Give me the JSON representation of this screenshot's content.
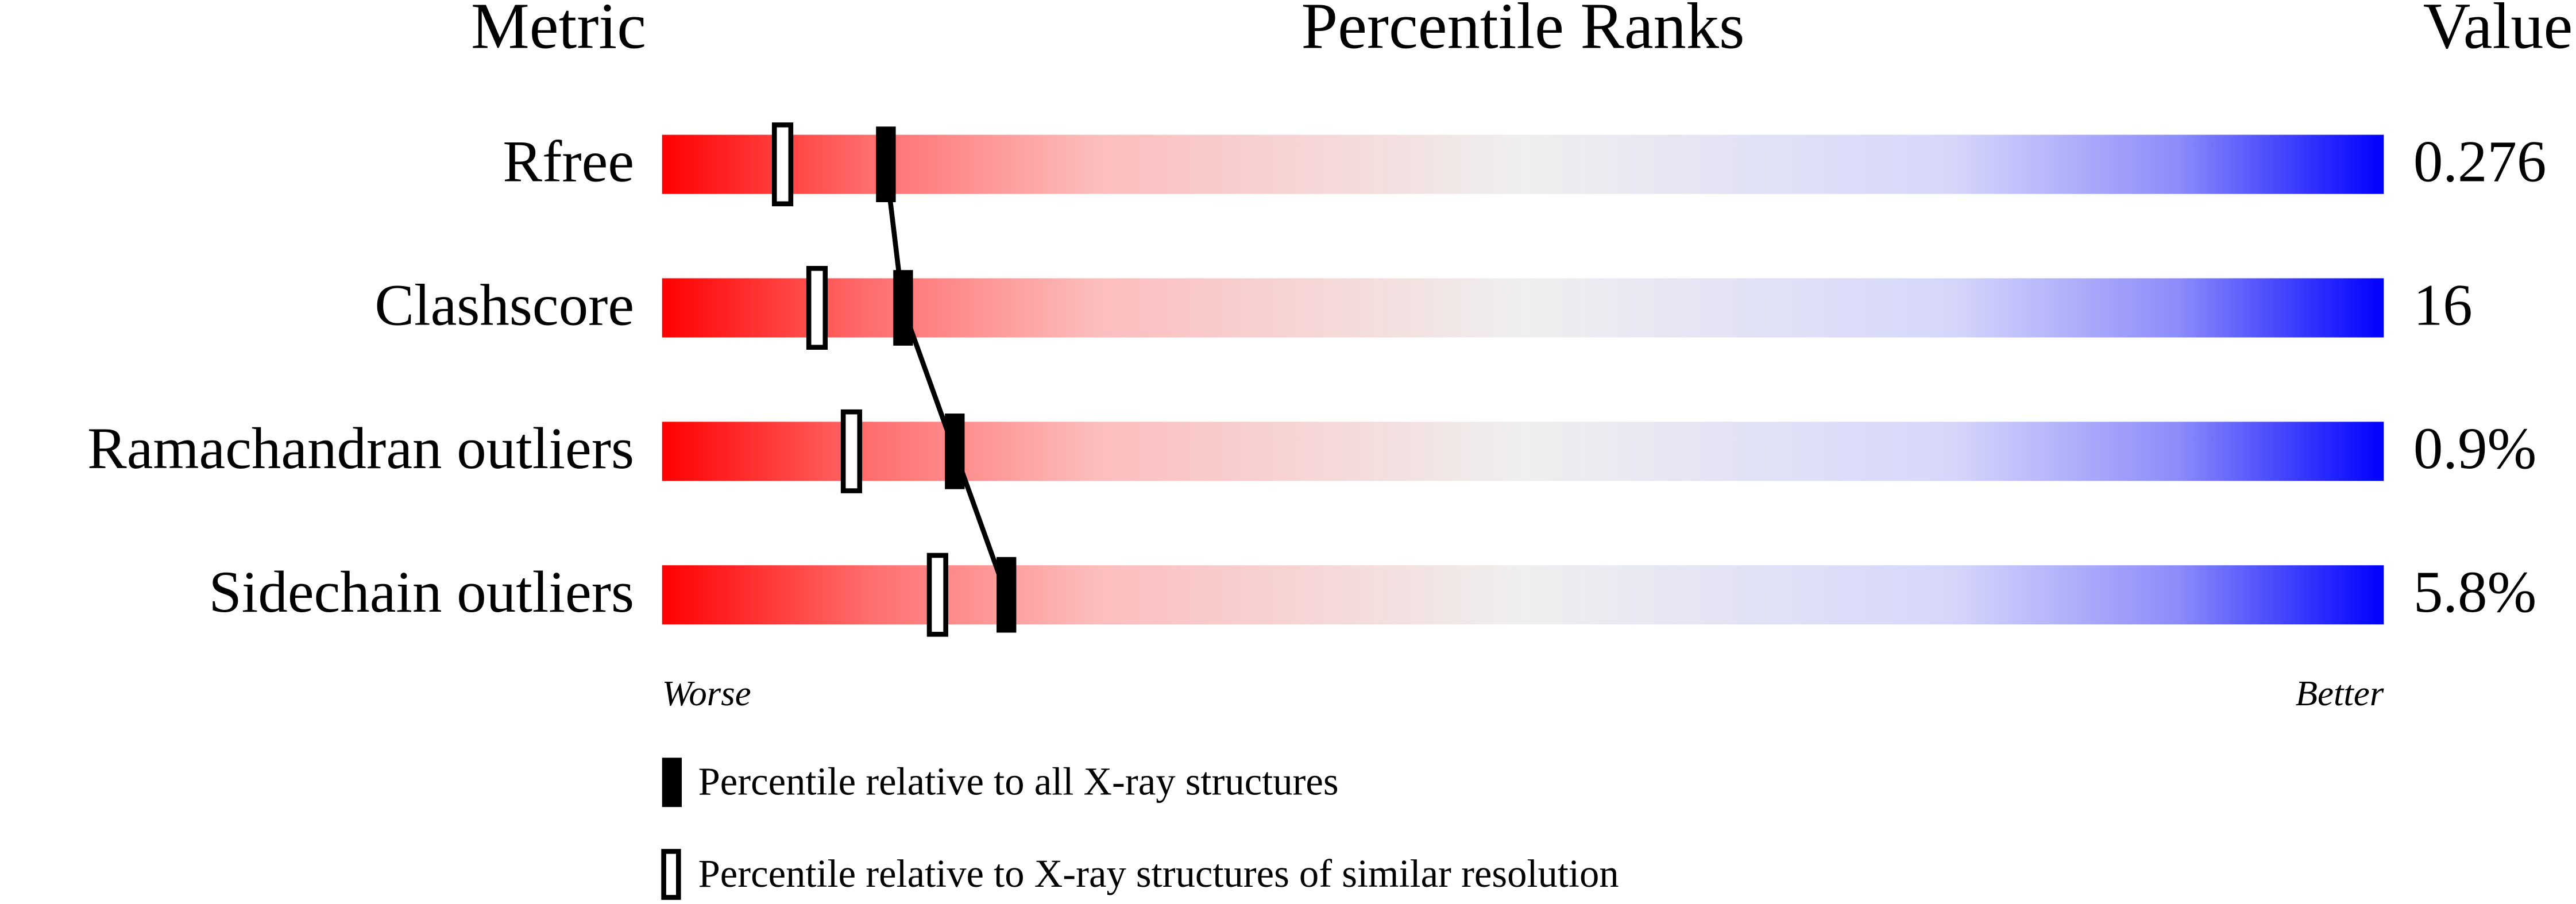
{
  "chart_data": {
    "type": "percentile",
    "headers": [
      "Metric",
      "Percentile Ranks",
      "Value"
    ],
    "categories": [
      "Rfree",
      "Clashscore",
      "Ramachandran outliers",
      "Sidechain outliers"
    ],
    "metric_values": [
      "0.276",
      "16",
      "0.9%",
      "5.8%"
    ],
    "xlim": [
      0,
      100
    ],
    "axis_labels": [
      "Worse",
      "Better"
    ],
    "series": [
      {
        "name": "Percentile relative to all X-ray structures",
        "color": "#000000",
        "filled": true,
        "values": [
          13,
          14,
          17,
          20
        ]
      },
      {
        "name": "Percentile relative to X-ray structures of similar resolution",
        "color": "#000000",
        "filled": false,
        "values": [
          7,
          9,
          11,
          16
        ]
      }
    ]
  }
}
